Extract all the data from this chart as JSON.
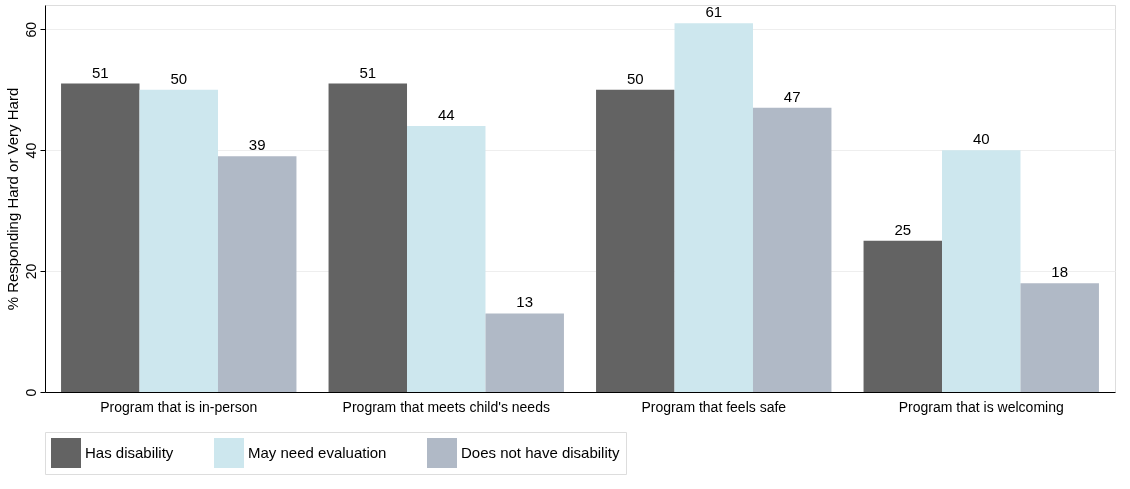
{
  "chart_data": {
    "type": "bar",
    "ylabel": "% Responding Hard or Very Hard",
    "categories": [
      "Program that is in-person",
      "Program that meets child's needs",
      "Program that feels safe",
      "Program that is welcoming"
    ],
    "series": [
      {
        "name": "Has disability",
        "color": "#636363",
        "values": [
          51,
          51,
          50,
          25
        ]
      },
      {
        "name": "May need evaluation",
        "color": "#cde7ee",
        "values": [
          50,
          44,
          61,
          40
        ]
      },
      {
        "name": "Does not have disability",
        "color": "#b0b9c6",
        "values": [
          39,
          13,
          47,
          18
        ]
      }
    ],
    "ylim": [
      0,
      64
    ],
    "yticks": [
      0,
      20,
      40,
      60
    ],
    "grid": "y",
    "legend": "bottom",
    "data_labels": true
  }
}
